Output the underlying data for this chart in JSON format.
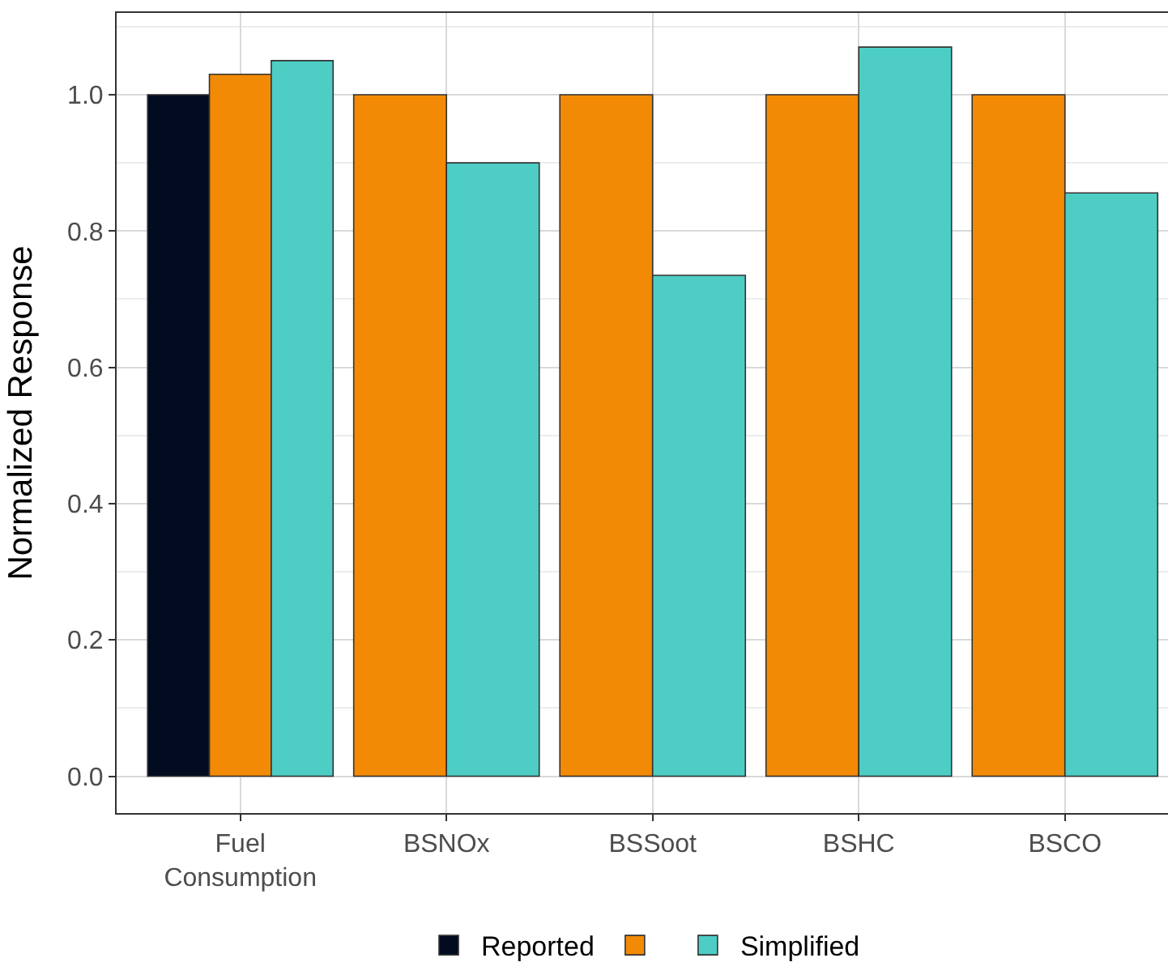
{
  "chart_data": {
    "type": "bar",
    "ylabel": "Normalized Response",
    "categories": [
      "Fuel\nConsumption",
      "BSNOx",
      "BSSoot",
      "BSHC",
      "BSCO"
    ],
    "series": [
      {
        "name": "Reported",
        "color": "#020b20",
        "values": [
          1.0,
          null,
          null,
          null,
          null
        ]
      },
      {
        "color": "#f28a05",
        "values": [
          1.03,
          1.0,
          1.0,
          1.0,
          1.0
        ]
      },
      {
        "name": "Simplified",
        "color": "#4ecdc4",
        "values": [
          1.05,
          0.9,
          0.735,
          1.07,
          0.856
        ]
      }
    ],
    "ylim": [
      -0.054,
      1.12
    ],
    "yticks": [
      {
        "value": 0,
        "label": "0.0"
      },
      {
        "value": 0.2,
        "label": "0.2"
      },
      {
        "value": 0.4,
        "label": "0.4"
      },
      {
        "value": 0.6,
        "label": "0.6"
      },
      {
        "value": 0.8,
        "label": "0.8"
      },
      {
        "value": 1.0,
        "label": "1.0"
      }
    ],
    "grid": true,
    "legend": "bottom"
  }
}
